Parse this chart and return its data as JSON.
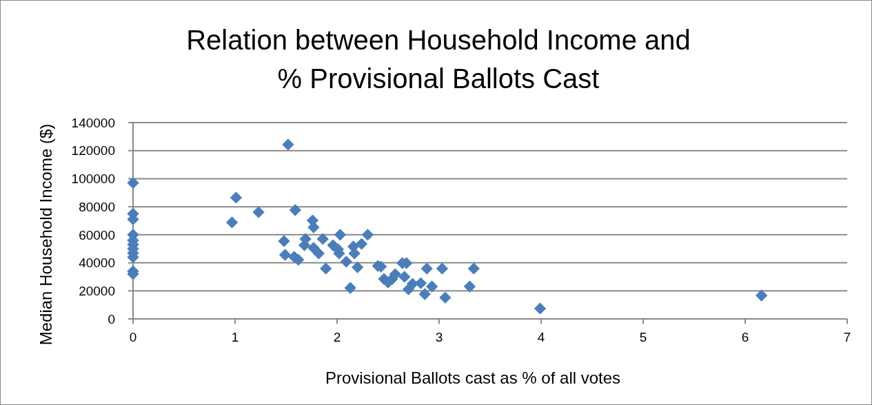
{
  "chart_data": {
    "type": "scatter",
    "title": "Relation between Household Income and\n% Provisional Ballots Cast",
    "xlabel": "Provisional Ballots cast as % of all votes",
    "ylabel": "Median Household Income ($)",
    "marker": "diamond",
    "grid": "y",
    "xlim": [
      0,
      7
    ],
    "xticks": [
      0,
      1,
      2,
      3,
      4,
      5,
      6,
      7
    ],
    "ylim": [
      0,
      140000
    ],
    "yticks": [
      0,
      20000,
      40000,
      60000,
      80000,
      100000,
      120000,
      140000
    ],
    "series": [
      {
        "color": "#4a7ebb",
        "x": [
          0,
          0,
          0,
          0,
          0,
          0,
          0,
          0,
          0,
          0,
          0,
          0.97,
          1.01,
          1.23,
          1.48,
          1.49,
          1.52,
          1.59,
          1.58,
          1.62,
          1.69,
          1.68,
          1.76,
          1.77,
          1.77,
          1.82,
          1.86,
          1.89,
          1.96,
          2.01,
          2.02,
          2.03,
          2.09,
          2.13,
          2.16,
          2.17,
          2.2,
          2.24,
          2.3,
          2.4,
          2.43,
          2.46,
          2.5,
          2.54,
          2.57,
          2.64,
          2.68,
          2.66,
          2.7,
          2.74,
          2.82,
          2.86,
          2.88,
          2.93,
          3.03,
          3.06,
          3.3,
          3.34,
          3.99,
          6.16
        ],
        "values": [
          97000,
          75000,
          71000,
          60000,
          56000,
          53000,
          50000,
          47000,
          44000,
          34000,
          32000,
          68800,
          86500,
          76100,
          55500,
          45700,
          124300,
          77600,
          44200,
          42200,
          57000,
          52500,
          70200,
          65300,
          50600,
          46700,
          57000,
          35900,
          52500,
          49600,
          46700,
          60000,
          40800,
          22100,
          51600,
          46700,
          36800,
          53500,
          60000,
          37800,
          37300,
          28500,
          26000,
          28500,
          31900,
          39800,
          39800,
          30000,
          21100,
          25000,
          25500,
          17700,
          35900,
          23100,
          35900,
          15200,
          23100,
          35900,
          7400,
          16700
        ]
      }
    ]
  }
}
